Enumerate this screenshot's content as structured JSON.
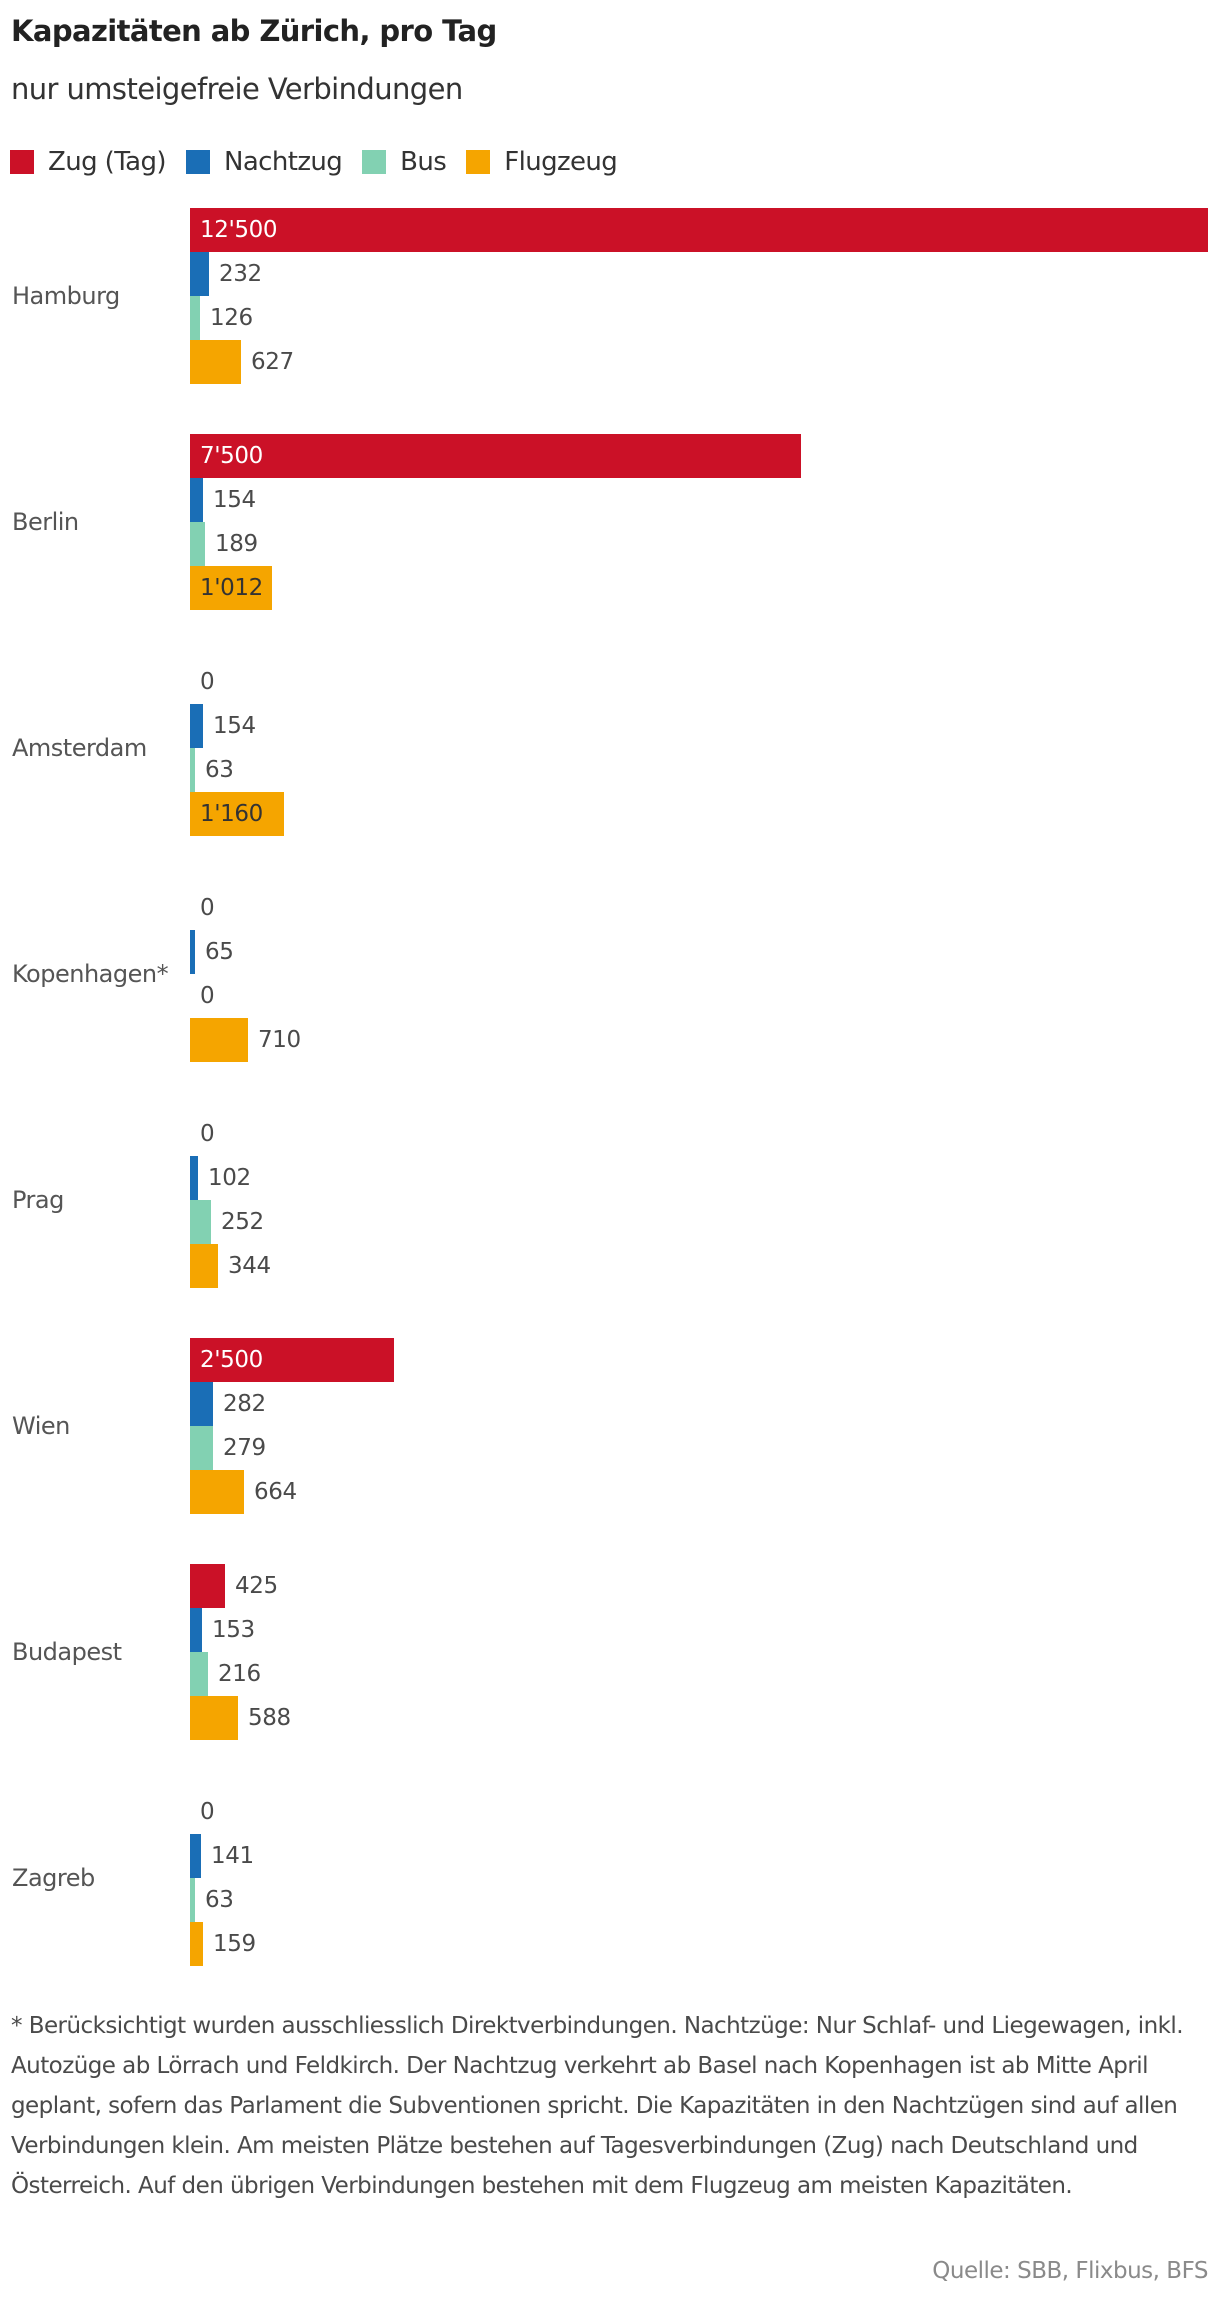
{
  "header": {
    "title": "Kapazitäten ab Zürich, pro Tag",
    "subtitle": "nur umsteigefreie Verbindungen"
  },
  "legend": [
    {
      "label": "Zug (Tag)",
      "color": "#CB1127"
    },
    {
      "label": "Nachtzug",
      "color": "#1A6EB6"
    },
    {
      "label": "Bus",
      "color": "#82D1B2"
    },
    {
      "label": "Flugzeug",
      "color": "#F5A500"
    }
  ],
  "chart_data": {
    "type": "bar",
    "orientation": "horizontal",
    "title": "Kapazitäten ab Zürich, pro Tag",
    "subtitle": "nur umsteigefreie Verbindungen",
    "xlabel": "",
    "ylabel": "",
    "grid": false,
    "legend_position": "top",
    "categories": [
      "Hamburg",
      "Berlin",
      "Amsterdam",
      "Kopenhagen*",
      "Prag",
      "Wien",
      "Budapest",
      "Zagreb"
    ],
    "series": [
      {
        "name": "Zug (Tag)",
        "color": "#CB1127",
        "values": [
          12500,
          7500,
          0,
          0,
          0,
          2500,
          425,
          0
        ],
        "labels": [
          "12'500",
          "7'500",
          "0",
          "0",
          "0",
          "2'500",
          "425",
          "0"
        ]
      },
      {
        "name": "Nachtzug",
        "color": "#1A6EB6",
        "values": [
          232,
          154,
          154,
          65,
          102,
          282,
          153,
          141
        ],
        "labels": [
          "232",
          "154",
          "154",
          "65",
          "102",
          "282",
          "153",
          "141"
        ]
      },
      {
        "name": "Bus",
        "color": "#82D1B2",
        "values": [
          126,
          189,
          63,
          0,
          252,
          279,
          216,
          63
        ],
        "labels": [
          "126",
          "189",
          "63",
          "0",
          "252",
          "279",
          "216",
          "63"
        ]
      },
      {
        "name": "Flugzeug",
        "color": "#F5A500",
        "values": [
          627,
          1012,
          1160,
          710,
          344,
          664,
          588,
          159
        ],
        "labels": [
          "627",
          "1'012",
          "1'160",
          "710",
          "344",
          "664",
          "588",
          "159"
        ]
      }
    ],
    "xlim": [
      0,
      12500
    ]
  },
  "footnote": "* Berücksichtigt wurden ausschliesslich Direktverbindungen. Nachtzüge: Nur Schlaf- und Liegewagen, inkl. Autozüge ab Lörrach und Feldkirch. Der Nachtzug verkehrt ab Basel nach Kopenhagen ist ab Mitte April geplant, sofern das Parlament die Subventionen spricht. Die Kapazitäten in den Nachtzügen sind auf allen Verbindungen klein. Am meisten Plätze bestehen auf Tagesverbindungen (Zug) nach Deutschland und Österreich. Auf den übrigen Verbindungen bestehen mit dem Flugzeug am meisten Kapazitäten.",
  "source": "Quelle: SBB, Flixbus, BFS"
}
